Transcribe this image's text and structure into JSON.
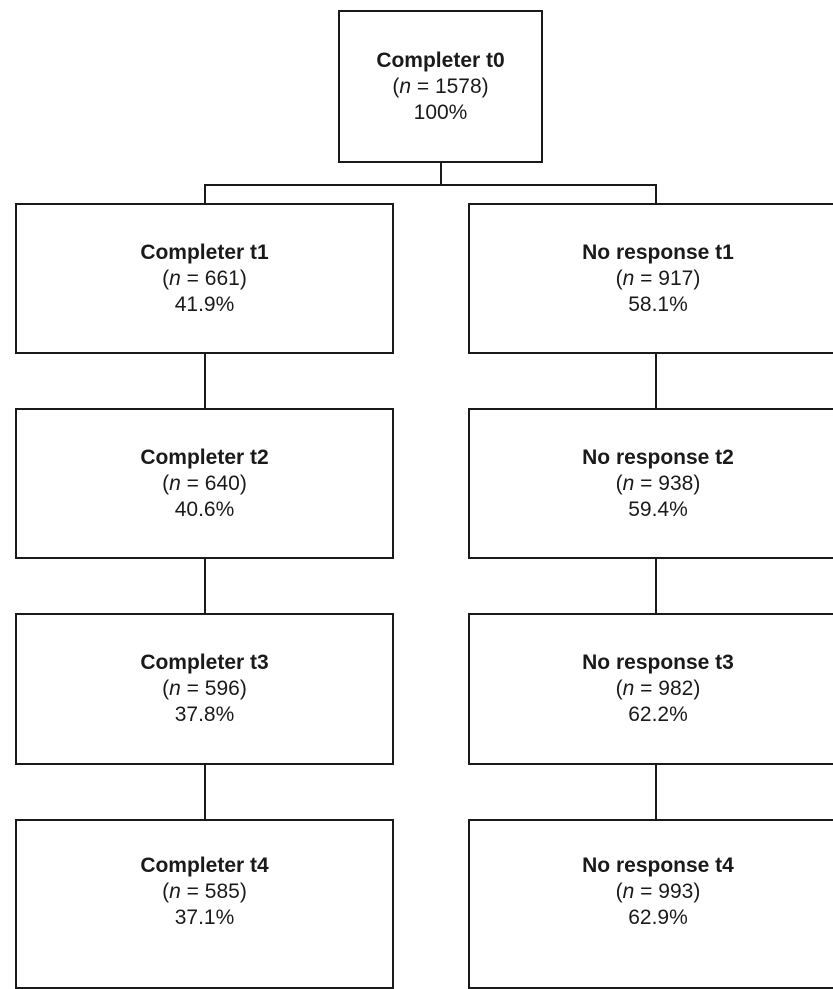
{
  "root": {
    "title": "Completer t0",
    "n_prefix": "(",
    "n_symbol": "n",
    "n_eq": " = ",
    "n_value": "1578",
    "n_suffix": ")",
    "percent": "100%"
  },
  "completers": [
    {
      "title": "Completer t1",
      "n_value": "661",
      "percent": "41.9%"
    },
    {
      "title": "Completer t2",
      "n_value": "640",
      "percent": "40.6%"
    },
    {
      "title": "Completer t3",
      "n_value": "596",
      "percent": "37.8%"
    },
    {
      "title": "Completer t4",
      "n_value": "585",
      "percent": "37.1%"
    }
  ],
  "no_response": [
    {
      "title": "No response t1",
      "n_value": "917",
      "percent": "58.1%"
    },
    {
      "title": "No response t2",
      "n_value": "938",
      "percent": "59.4%"
    },
    {
      "title": "No response t3",
      "n_value": "982",
      "percent": "62.2%"
    },
    {
      "title": "No response t4",
      "n_value": "993",
      "percent": "62.9%"
    }
  ],
  "labels": {
    "open_paren": "(",
    "n_symbol": "n",
    "equals": " = ",
    "close_paren": ")"
  }
}
